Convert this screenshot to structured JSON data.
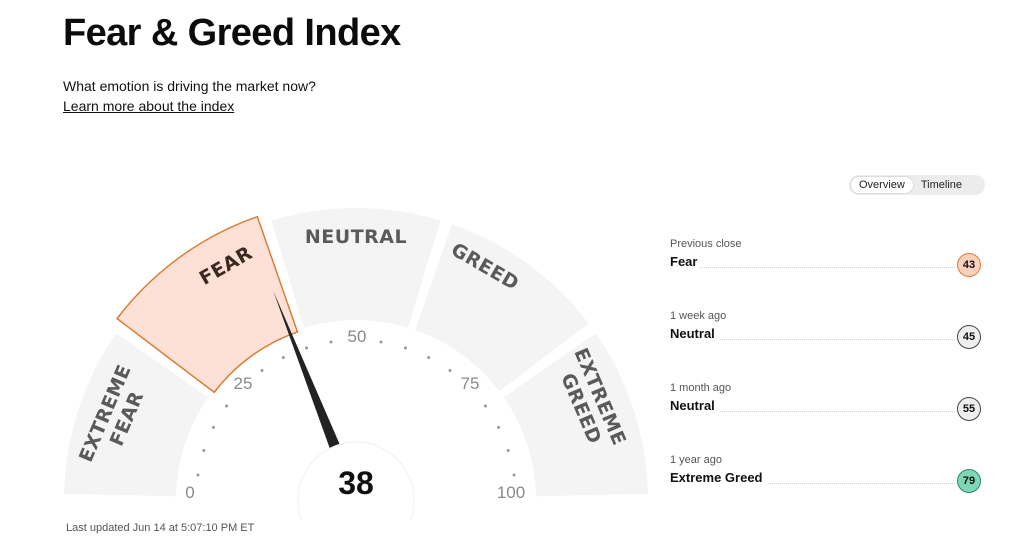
{
  "header": {
    "title": "Fear & Greed Index",
    "subtitle": "What emotion is driving the market now?",
    "learn_more": "Learn more about the index"
  },
  "toggle": {
    "overview": "Overview",
    "timeline": "Timeline",
    "active": "Overview"
  },
  "gauge": {
    "value": 38,
    "value_label": "38",
    "segments": [
      {
        "line1": "EXTREME",
        "line2": "FEAR"
      },
      {
        "line1": "FEAR"
      },
      {
        "line1": "NEUTRAL"
      },
      {
        "line1": "GREED"
      },
      {
        "line1": "EXTREME",
        "line2": "GREED"
      }
    ],
    "ticks": [
      "0",
      "25",
      "50",
      "75",
      "100"
    ],
    "active_segment": "FEAR"
  },
  "history": [
    {
      "label": "Previous close",
      "status": "Fear",
      "value": "43",
      "color": "#fbd0bb",
      "border": "#e07b3a"
    },
    {
      "label": "1 week ago",
      "status": "Neutral",
      "value": "45",
      "color": "#eeeeee",
      "border": "#444444"
    },
    {
      "label": "1 month ago",
      "status": "Neutral",
      "value": "55",
      "color": "#eeeeee",
      "border": "#444444"
    },
    {
      "label": "1 year ago",
      "status": "Extreme Greed",
      "value": "79",
      "color": "#7fd6b6",
      "border": "#2c8a66"
    }
  ],
  "footer": {
    "updated": "Last updated Jun 14 at 5:07:10 PM ET"
  },
  "colors": {
    "fear_fill": "#fde0d6",
    "fear_stroke": "#d97d34",
    "segment_fill": "#f4f4f4",
    "needle": "#222222"
  }
}
